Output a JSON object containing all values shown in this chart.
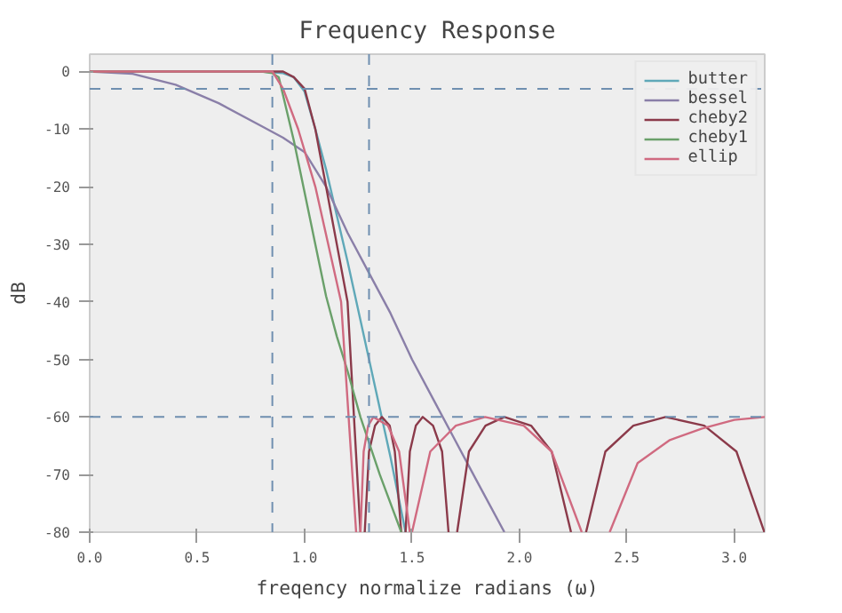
{
  "chart_data": {
    "type": "line",
    "title": "Frequency Response",
    "xlabel": "freqency normalize radians (ω)",
    "ylabel": "dB",
    "xlim": [
      0,
      3.1416
    ],
    "ylim": [
      -80,
      3
    ],
    "xticks": [
      {
        "value": 0,
        "label": "0.0"
      },
      {
        "value": 0.5,
        "label": "0.5"
      },
      {
        "value": 1,
        "label": "1.0"
      },
      {
        "value": 1.5,
        "label": "1.5"
      },
      {
        "value": 2,
        "label": "2.0"
      },
      {
        "value": 2.5,
        "label": "2.5"
      },
      {
        "value": 3,
        "label": "3.0"
      }
    ],
    "yticks": [
      -80,
      -70,
      -60,
      -50,
      -40,
      -30,
      -20,
      -10,
      0
    ],
    "grid": false,
    "legend": "top right",
    "line_style": "solid",
    "marker": "none",
    "ref_lines": [
      {
        "axis": "x",
        "value": 0.85,
        "color": "#6f8fb0",
        "line_style": "dashed"
      },
      {
        "axis": "x",
        "value": 1.3,
        "color": "#6f8fb0",
        "line_style": "dashed"
      },
      {
        "axis": "y",
        "value": -3,
        "color": "#6f8fb0",
        "line_style": "dashed"
      },
      {
        "axis": "y",
        "value": -60,
        "color": "#6f8fb0",
        "line_style": "dashed"
      }
    ],
    "series": [
      {
        "name": "butter",
        "color": "#5fa8b8",
        "x": [
          0,
          0.8,
          0.9,
          0.95,
          1.0,
          1.05,
          1.1,
          1.15,
          1.2,
          1.3,
          1.4,
          1.47
        ],
        "values": [
          0,
          0,
          -0.3,
          -1,
          -3.5,
          -10,
          -17,
          -25,
          -33,
          -50,
          -67,
          -80
        ]
      },
      {
        "name": "bessel",
        "color": "#8a7fa8",
        "x": [
          0,
          0.2,
          0.4,
          0.6,
          0.8,
          0.9,
          1.0,
          1.1,
          1.2,
          1.3,
          1.4,
          1.5,
          1.6,
          1.7,
          1.8,
          1.93
        ],
        "values": [
          0,
          -0.4,
          -2.3,
          -5.5,
          -9.5,
          -11.5,
          -14,
          -20,
          -28,
          -35,
          -42,
          -50,
          -57,
          -64,
          -71,
          -80
        ]
      },
      {
        "name": "cheby2",
        "color": "#8b3a4a",
        "x": [
          0,
          0.9,
          0.95,
          1.0,
          1.05,
          1.1,
          1.15,
          1.2,
          1.26,
          1.27,
          1.28,
          1.3,
          1.328,
          1.36,
          1.396,
          1.42,
          1.45,
          1.46,
          1.47,
          1.49,
          1.518,
          1.55,
          1.598,
          1.64,
          1.67,
          1.69,
          1.71,
          1.765,
          1.842,
          1.93,
          2.054,
          2.15,
          2.24,
          2.27,
          2.31,
          2.4,
          2.53,
          2.68,
          2.86,
          3.01,
          3.14
        ],
        "values": [
          0,
          0,
          -1,
          -3,
          -10,
          -20,
          -30,
          -40,
          -80,
          null,
          -80,
          -66,
          -61.5,
          -60,
          -61.5,
          -66,
          -80,
          null,
          -80,
          -66,
          -61.5,
          -60,
          -61.5,
          -66,
          -80,
          null,
          -80,
          -66,
          -61.5,
          -60,
          -61.5,
          -66,
          -80,
          null,
          -80,
          -66,
          -61.5,
          -60,
          -61.5,
          -66,
          -80
        ]
      },
      {
        "name": "cheby1",
        "color": "#6aa06a",
        "x": [
          0,
          0.8,
          0.85,
          0.88,
          0.95,
          1.0,
          1.05,
          1.1,
          1.15,
          1.2,
          1.26,
          1.35,
          1.45
        ],
        "values": [
          0,
          0,
          -0.3,
          -1,
          -12,
          -21,
          -30,
          -39,
          -46,
          -52,
          -60,
          -70,
          -80
        ]
      },
      {
        "name": "ellip",
        "color": "#d06a80",
        "x": [
          0,
          0.85,
          0.9,
          0.97,
          1.05,
          1.17,
          1.24,
          1.25,
          1.26,
          1.275,
          1.296,
          1.32,
          1.388,
          1.44,
          1.49,
          1.495,
          1.5,
          1.585,
          1.704,
          1.84,
          2.02,
          2.15,
          2.29,
          2.35,
          2.42,
          2.55,
          2.7,
          2.85,
          3.0,
          3.1416
        ],
        "values": [
          0,
          0,
          -3,
          -10,
          -20,
          -40,
          -80,
          null,
          -80,
          -66,
          -61.5,
          -60,
          -61.5,
          -66,
          -80,
          null,
          -80,
          -66,
          -61.5,
          -60,
          -61.5,
          -66,
          -80,
          null,
          -80,
          -68,
          -64,
          -62,
          -60.5,
          -60
        ]
      }
    ]
  }
}
